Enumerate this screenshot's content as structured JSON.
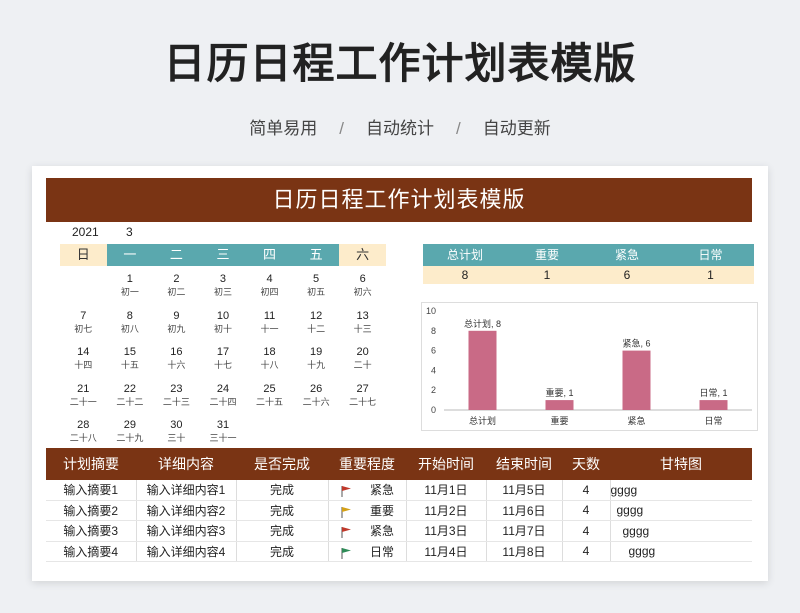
{
  "hero": {
    "title": "日历日程工作计划表模版",
    "subtitle_items": [
      "简单易用",
      "自动统计",
      "自动更新"
    ]
  },
  "sheet": {
    "banner_title": "日历日程工作计划表模版",
    "year": "2021",
    "month": "3",
    "weekdays": [
      "日",
      "一",
      "二",
      "三",
      "四",
      "五",
      "六"
    ],
    "calendar_rows": [
      [
        null,
        {
          "d": "1",
          "l": "初一"
        },
        {
          "d": "2",
          "l": "初二"
        },
        {
          "d": "3",
          "l": "初三"
        },
        {
          "d": "4",
          "l": "初四"
        },
        {
          "d": "5",
          "l": "初五"
        },
        {
          "d": "6",
          "l": "初六"
        }
      ],
      [
        {
          "d": "7",
          "l": "初七"
        },
        {
          "d": "8",
          "l": "初八"
        },
        {
          "d": "9",
          "l": "初九"
        },
        {
          "d": "10",
          "l": "初十"
        },
        {
          "d": "11",
          "l": "十一"
        },
        {
          "d": "12",
          "l": "十二"
        },
        {
          "d": "13",
          "l": "十三"
        }
      ],
      [
        {
          "d": "14",
          "l": "十四"
        },
        {
          "d": "15",
          "l": "十五"
        },
        {
          "d": "16",
          "l": "十六"
        },
        {
          "d": "17",
          "l": "十七"
        },
        {
          "d": "18",
          "l": "十八"
        },
        {
          "d": "19",
          "l": "十九"
        },
        {
          "d": "20",
          "l": "二十"
        }
      ],
      [
        {
          "d": "21",
          "l": "二十一"
        },
        {
          "d": "22",
          "l": "二十二"
        },
        {
          "d": "23",
          "l": "二十三"
        },
        {
          "d": "24",
          "l": "二十四"
        },
        {
          "d": "25",
          "l": "二十五"
        },
        {
          "d": "26",
          "l": "二十六"
        },
        {
          "d": "27",
          "l": "二十七"
        }
      ],
      [
        {
          "d": "28",
          "l": "二十八"
        },
        {
          "d": "29",
          "l": "二十九"
        },
        {
          "d": "30",
          "l": "三十"
        },
        {
          "d": "31",
          "l": "三十一"
        },
        null,
        null,
        null
      ]
    ],
    "summary": {
      "headers": [
        "总计划",
        "重要",
        "紧急",
        "日常"
      ],
      "values": [
        "8",
        "1",
        "6",
        "1"
      ]
    },
    "table": {
      "headers": [
        "计划摘要",
        "详细内容",
        "是否完成",
        "重要程度",
        "开始时间",
        "结束时间",
        "天数",
        "甘特图"
      ],
      "rows": [
        {
          "summary": "输入摘要1",
          "detail": "输入详细内容1",
          "done": "完成",
          "level": "紧急",
          "flag": "#c0392b",
          "start": "11月1日",
          "end": "11月5日",
          "days": "4",
          "gantt": "gggg"
        },
        {
          "summary": "输入摘要2",
          "detail": "输入详细内容2",
          "done": "完成",
          "level": "重要",
          "flag": "#d4a017",
          "start": "11月2日",
          "end": "11月6日",
          "days": "4",
          "gantt": "gggg"
        },
        {
          "summary": "输入摘要3",
          "detail": "输入详细内容3",
          "done": "完成",
          "level": "紧急",
          "flag": "#c0392b",
          "start": "11月3日",
          "end": "11月7日",
          "days": "4",
          "gantt": "gggg"
        },
        {
          "summary": "输入摘要4",
          "detail": "输入详细内容4",
          "done": "完成",
          "level": "日常",
          "flag": "#2e8b57",
          "start": "11月4日",
          "end": "11月8日",
          "days": "4",
          "gantt": "gggg"
        }
      ]
    }
  },
  "chart_data": {
    "type": "bar",
    "categories": [
      "总计划",
      "重要",
      "紧急",
      "日常"
    ],
    "values": [
      8,
      1,
      6,
      1
    ],
    "data_labels": [
      "总计划, 8",
      "重要, 1",
      "紧急, 6",
      "日常, 1"
    ],
    "ylim": [
      0,
      10
    ],
    "yticks": [
      "0",
      "2",
      "4",
      "6",
      "8",
      "10"
    ],
    "bar_color": "#c96a86",
    "grid": false
  },
  "colors": {
    "banner": "#7a3414",
    "teal": "#5aa8ae",
    "cream": "#fdeccb"
  }
}
